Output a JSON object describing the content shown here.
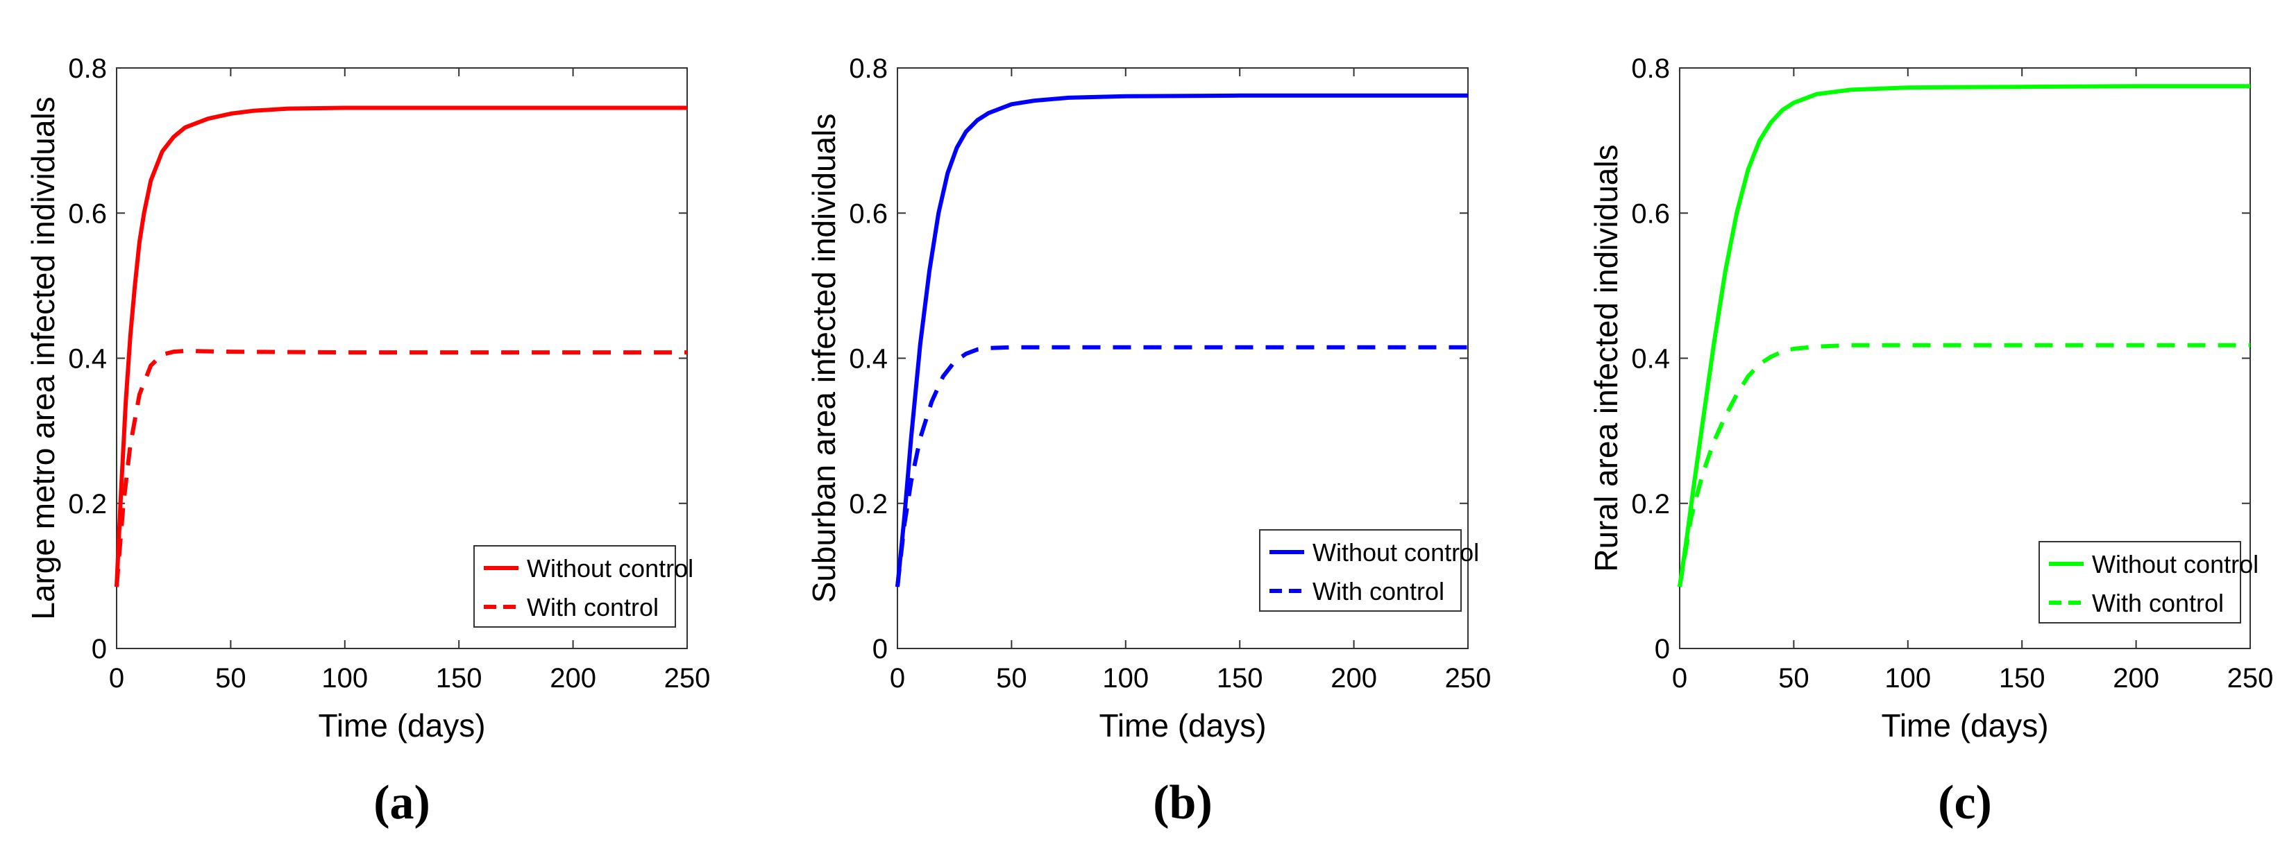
{
  "chart_data": [
    {
      "type": "line",
      "panel_label": "(a)",
      "xlabel": "Time (days)",
      "ylabel": "Large metro area infected individuals",
      "xlim": [
        0,
        250
      ],
      "ylim": [
        0,
        0.8
      ],
      "xticks": [
        "0",
        "50",
        "100",
        "150",
        "200",
        "250"
      ],
      "yticks": [
        "0",
        "0.2",
        "0.4",
        "0.6",
        "0.8"
      ],
      "grid": false,
      "legend": "bottom-right",
      "color": "#ff0000",
      "series": [
        {
          "name": "Without control",
          "style": "solid",
          "x": [
            0,
            2,
            4,
            6,
            8,
            10,
            12,
            15,
            20,
            25,
            30,
            40,
            50,
            60,
            75,
            100,
            150,
            200,
            250
          ],
          "y": [
            0.085,
            0.22,
            0.34,
            0.43,
            0.5,
            0.56,
            0.6,
            0.645,
            0.685,
            0.705,
            0.718,
            0.73,
            0.737,
            0.741,
            0.744,
            0.745,
            0.745,
            0.745,
            0.745
          ]
        },
        {
          "name": "With control",
          "style": "dashed",
          "x": [
            0,
            3,
            6,
            10,
            15,
            20,
            25,
            30,
            50,
            100,
            150,
            200,
            250
          ],
          "y": [
            0.085,
            0.2,
            0.28,
            0.35,
            0.39,
            0.405,
            0.409,
            0.41,
            0.409,
            0.408,
            0.408,
            0.408,
            0.408
          ]
        }
      ]
    },
    {
      "type": "line",
      "panel_label": "(b)",
      "xlabel": "Time (days)",
      "ylabel": "Suburban area infected individuals",
      "xlim": [
        0,
        250
      ],
      "ylim": [
        0,
        0.8
      ],
      "xticks": [
        "0",
        "50",
        "100",
        "150",
        "200",
        "250"
      ],
      "yticks": [
        "0",
        "0.2",
        "0.4",
        "0.6",
        "0.8"
      ],
      "grid": false,
      "legend": "bottom-right",
      "color": "#0000ff",
      "series": [
        {
          "name": "Without control",
          "style": "solid",
          "x": [
            0,
            3,
            6,
            10,
            14,
            18,
            22,
            26,
            30,
            35,
            40,
            50,
            60,
            75,
            100,
            150,
            200,
            250
          ],
          "y": [
            0.085,
            0.18,
            0.29,
            0.42,
            0.52,
            0.6,
            0.655,
            0.69,
            0.712,
            0.728,
            0.738,
            0.75,
            0.755,
            0.759,
            0.761,
            0.762,
            0.762,
            0.762
          ]
        },
        {
          "name": "With control",
          "style": "dashed",
          "x": [
            0,
            3,
            6,
            10,
            15,
            20,
            25,
            30,
            35,
            40,
            50,
            100,
            150,
            200,
            250
          ],
          "y": [
            0.085,
            0.17,
            0.23,
            0.29,
            0.34,
            0.375,
            0.395,
            0.406,
            0.412,
            0.414,
            0.415,
            0.415,
            0.415,
            0.415,
            0.415
          ]
        }
      ]
    },
    {
      "type": "line",
      "panel_label": "(c)",
      "xlabel": "Time (days)",
      "ylabel": "Rural area infected individuals",
      "xlim": [
        0,
        250
      ],
      "ylim": [
        0,
        0.8
      ],
      "xticks": [
        "0",
        "50",
        "100",
        "150",
        "200",
        "250"
      ],
      "yticks": [
        "0",
        "0.2",
        "0.4",
        "0.6",
        "0.8"
      ],
      "grid": false,
      "legend": "bottom-right",
      "color": "#00ff00",
      "series": [
        {
          "name": "Without control",
          "style": "solid",
          "x": [
            0,
            3,
            6,
            10,
            15,
            20,
            25,
            30,
            35,
            40,
            45,
            50,
            60,
            75,
            100,
            150,
            200,
            250
          ],
          "y": [
            0.085,
            0.15,
            0.22,
            0.31,
            0.42,
            0.52,
            0.6,
            0.66,
            0.7,
            0.725,
            0.742,
            0.752,
            0.764,
            0.77,
            0.773,
            0.774,
            0.775,
            0.775
          ]
        },
        {
          "name": "With control",
          "style": "dashed",
          "x": [
            0,
            5,
            10,
            15,
            20,
            25,
            30,
            35,
            40,
            45,
            50,
            60,
            75,
            100,
            150,
            200,
            250
          ],
          "y": [
            0.085,
            0.18,
            0.24,
            0.285,
            0.32,
            0.35,
            0.375,
            0.392,
            0.402,
            0.409,
            0.413,
            0.416,
            0.418,
            0.418,
            0.418,
            0.418,
            0.418
          ]
        }
      ]
    }
  ]
}
